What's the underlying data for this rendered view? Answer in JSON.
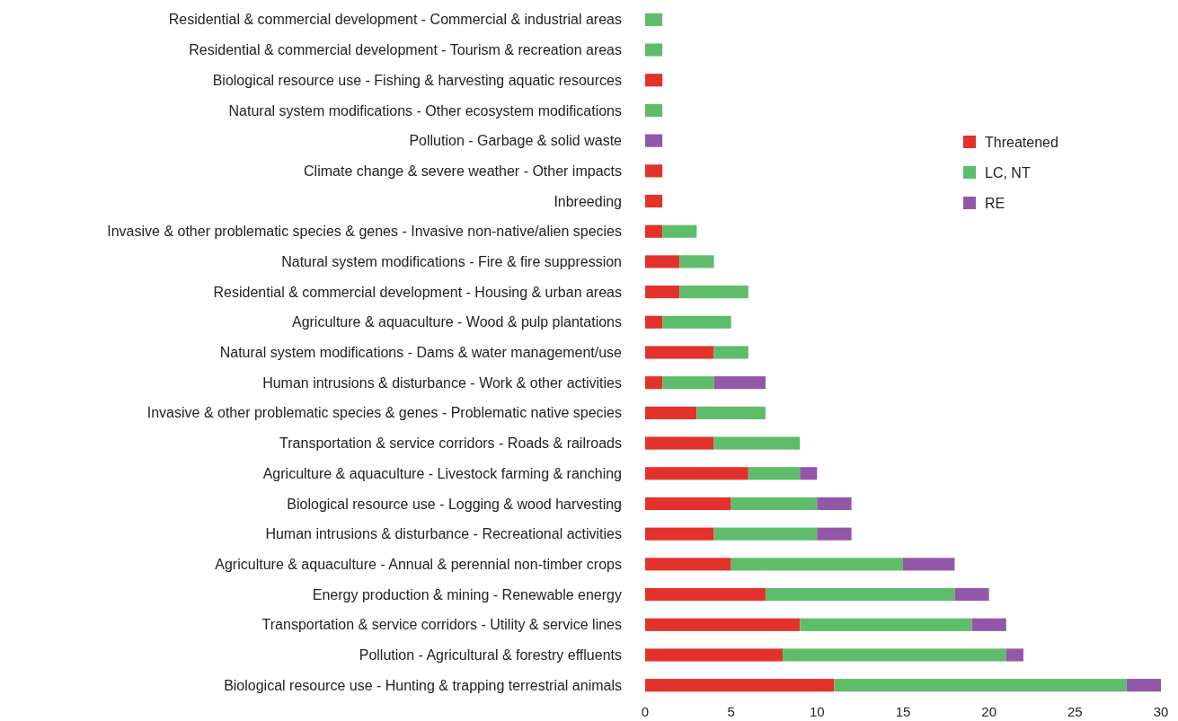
{
  "chart_data": {
    "type": "bar",
    "orientation": "horizontal",
    "stacked": true,
    "categories": [
      "Residential & commercial development - Commercial & industrial areas",
      "Residential & commercial development - Tourism & recreation areas",
      "Biological resource use - Fishing & harvesting aquatic resources",
      "Natural system modifications - Other ecosystem modifications",
      "Pollution - Garbage & solid waste",
      "Climate change & severe weather - Other impacts",
      "Inbreeding",
      "Invasive & other problematic species & genes - Invasive non-native/alien species",
      "Natural system modifications - Fire & fire suppression",
      "Residential & commercial development - Housing & urban areas",
      "Agriculture & aquaculture - Wood & pulp plantations",
      "Natural system modifications - Dams & water management/use",
      "Human intrusions & disturbance - Work & other activities",
      "Invasive & other problematic species & genes - Problematic native species",
      "Transportation & service corridors - Roads & railroads",
      "Agriculture & aquaculture - Livestock farming & ranching",
      "Biological resource use - Logging & wood harvesting",
      "Human intrusions & disturbance - Recreational activities",
      "Agriculture & aquaculture - Annual & perennial non-timber crops",
      "Energy production & mining - Renewable energy",
      "Transportation & service corridors - Utility & service lines",
      "Pollution - Agricultural & forestry effluents",
      "Biological resource use - Hunting & trapping terrestrial animals"
    ],
    "series": [
      {
        "name": "Threatened",
        "color": "#e3312b",
        "values": [
          0,
          0,
          1,
          0,
          0,
          1,
          1,
          1,
          2,
          2,
          1,
          4,
          1,
          3,
          4,
          6,
          5,
          4,
          5,
          7,
          9,
          8,
          11
        ]
      },
      {
        "name": "LC, NT",
        "color": "#5ebd6a",
        "values": [
          1,
          1,
          0,
          1,
          0,
          0,
          0,
          2,
          2,
          4,
          4,
          2,
          3,
          4,
          5,
          3,
          5,
          6,
          10,
          11,
          10,
          13,
          17
        ]
      },
      {
        "name": "RE",
        "color": "#9257a6",
        "values": [
          0,
          0,
          0,
          0,
          1,
          0,
          0,
          0,
          0,
          0,
          0,
          0,
          3,
          0,
          0,
          1,
          2,
          2,
          3,
          2,
          2,
          1,
          2
        ]
      }
    ],
    "xlim": [
      0,
      30
    ],
    "xticks": [
      0,
      5,
      10,
      15,
      20,
      25,
      30
    ],
    "grid": false,
    "legend": "top right"
  }
}
